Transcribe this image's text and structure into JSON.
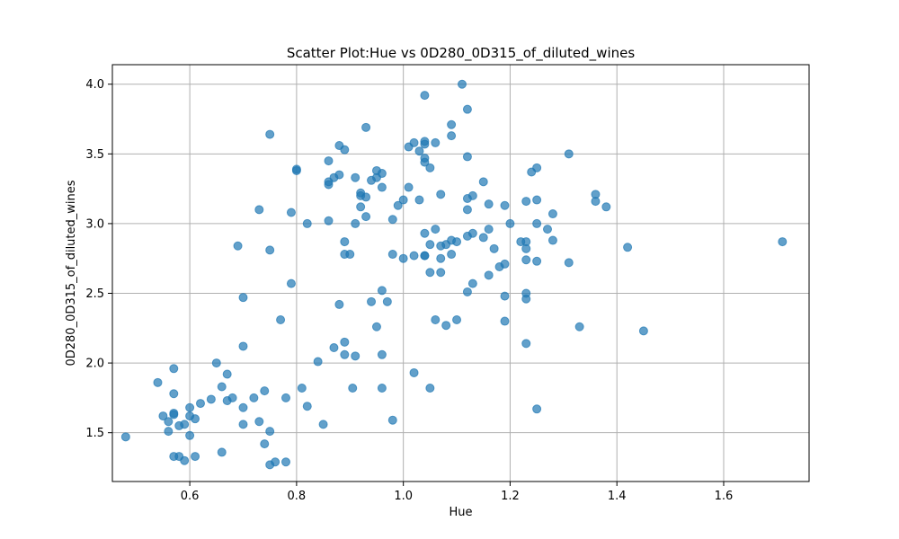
{
  "chart_data": {
    "type": "scatter",
    "title": "Scatter Plot:Hue vs 0D280_0D315_of_diluted_wines",
    "xlabel": "Hue",
    "ylabel": "0D280_0D315_of_diluted_wines",
    "xlim": [
      0.455,
      1.76
    ],
    "ylim": [
      1.15,
      4.14
    ],
    "xticks": [
      0.6,
      0.8,
      1.0,
      1.2,
      1.4,
      1.6
    ],
    "xtick_labels": [
      "0.6",
      "0.8",
      "1.0",
      "1.2",
      "1.4",
      "1.6"
    ],
    "yticks": [
      1.5,
      2.0,
      2.5,
      3.0,
      3.5,
      4.0
    ],
    "ytick_labels": [
      "1.5",
      "2.0",
      "2.5",
      "3.0",
      "3.5",
      "4.0"
    ],
    "grid": true,
    "marker_color": "#1f77b4",
    "marker_alpha": 0.7,
    "points": [
      [
        0.48,
        1.47
      ],
      [
        0.54,
        1.86
      ],
      [
        0.55,
        1.62
      ],
      [
        0.56,
        1.58
      ],
      [
        0.56,
        1.51
      ],
      [
        0.57,
        1.96
      ],
      [
        0.57,
        1.78
      ],
      [
        0.57,
        1.64
      ],
      [
        0.57,
        1.63
      ],
      [
        0.57,
        1.33
      ],
      [
        0.58,
        1.55
      ],
      [
        0.58,
        1.33
      ],
      [
        0.59,
        1.56
      ],
      [
        0.59,
        1.3
      ],
      [
        0.6,
        1.68
      ],
      [
        0.6,
        1.62
      ],
      [
        0.6,
        1.48
      ],
      [
        0.61,
        1.6
      ],
      [
        0.61,
        1.33
      ],
      [
        0.62,
        1.71
      ],
      [
        0.64,
        1.74
      ],
      [
        0.65,
        2.0
      ],
      [
        0.66,
        1.83
      ],
      [
        0.66,
        1.36
      ],
      [
        0.67,
        1.92
      ],
      [
        0.67,
        1.73
      ],
      [
        0.68,
        1.75
      ],
      [
        0.69,
        2.84
      ],
      [
        0.7,
        2.47
      ],
      [
        0.7,
        2.12
      ],
      [
        0.7,
        1.68
      ],
      [
        0.7,
        1.56
      ],
      [
        0.72,
        1.75
      ],
      [
        0.73,
        3.1
      ],
      [
        0.73,
        1.58
      ],
      [
        0.74,
        1.8
      ],
      [
        0.74,
        1.42
      ],
      [
        0.75,
        3.64
      ],
      [
        0.75,
        2.81
      ],
      [
        0.75,
        1.51
      ],
      [
        0.75,
        1.27
      ],
      [
        0.76,
        1.29
      ],
      [
        0.77,
        2.31
      ],
      [
        0.78,
        1.75
      ],
      [
        0.78,
        1.29
      ],
      [
        0.79,
        3.08
      ],
      [
        0.79,
        2.57
      ],
      [
        0.8,
        3.39
      ],
      [
        0.8,
        3.38
      ],
      [
        0.81,
        1.82
      ],
      [
        0.82,
        3.0
      ],
      [
        0.82,
        1.69
      ],
      [
        0.84,
        2.01
      ],
      [
        0.85,
        1.56
      ],
      [
        0.86,
        3.45
      ],
      [
        0.86,
        3.3
      ],
      [
        0.86,
        3.28
      ],
      [
        0.86,
        3.02
      ],
      [
        0.87,
        3.33
      ],
      [
        0.87,
        2.11
      ],
      [
        0.88,
        3.56
      ],
      [
        0.88,
        3.35
      ],
      [
        0.88,
        2.42
      ],
      [
        0.89,
        3.53
      ],
      [
        0.89,
        2.87
      ],
      [
        0.89,
        2.78
      ],
      [
        0.89,
        2.15
      ],
      [
        0.89,
        2.06
      ],
      [
        0.9,
        2.78
      ],
      [
        0.905,
        1.82
      ],
      [
        0.91,
        3.33
      ],
      [
        0.91,
        3.0
      ],
      [
        0.91,
        2.05
      ],
      [
        0.92,
        3.22
      ],
      [
        0.92,
        3.2
      ],
      [
        0.92,
        3.12
      ],
      [
        0.93,
        3.69
      ],
      [
        0.93,
        3.19
      ],
      [
        0.93,
        3.05
      ],
      [
        0.94,
        3.31
      ],
      [
        0.94,
        2.44
      ],
      [
        0.95,
        3.38
      ],
      [
        0.95,
        3.33
      ],
      [
        0.95,
        2.26
      ],
      [
        0.96,
        3.36
      ],
      [
        0.96,
        3.26
      ],
      [
        0.96,
        2.52
      ],
      [
        0.96,
        2.06
      ],
      [
        0.96,
        1.82
      ],
      [
        0.97,
        2.44
      ],
      [
        0.98,
        3.03
      ],
      [
        0.98,
        2.78
      ],
      [
        0.98,
        1.59
      ],
      [
        0.99,
        3.13
      ],
      [
        1.0,
        3.17
      ],
      [
        1.0,
        2.75
      ],
      [
        1.01,
        3.55
      ],
      [
        1.01,
        3.26
      ],
      [
        1.02,
        3.58
      ],
      [
        1.02,
        2.77
      ],
      [
        1.02,
        1.93
      ],
      [
        1.03,
        3.52
      ],
      [
        1.03,
        3.17
      ],
      [
        1.04,
        3.92
      ],
      [
        1.04,
        3.59
      ],
      [
        1.04,
        3.57
      ],
      [
        1.04,
        3.47
      ],
      [
        1.04,
        3.44
      ],
      [
        1.04,
        2.93
      ],
      [
        1.04,
        2.77
      ],
      [
        1.04,
        2.77
      ],
      [
        1.05,
        3.4
      ],
      [
        1.05,
        2.85
      ],
      [
        1.05,
        2.65
      ],
      [
        1.05,
        1.82
      ],
      [
        1.06,
        3.58
      ],
      [
        1.06,
        2.96
      ],
      [
        1.06,
        2.31
      ],
      [
        1.07,
        3.21
      ],
      [
        1.07,
        2.84
      ],
      [
        1.07,
        2.75
      ],
      [
        1.07,
        2.65
      ],
      [
        1.08,
        2.85
      ],
      [
        1.08,
        2.27
      ],
      [
        1.09,
        3.71
      ],
      [
        1.09,
        3.63
      ],
      [
        1.09,
        2.88
      ],
      [
        1.09,
        2.78
      ],
      [
        1.1,
        2.87
      ],
      [
        1.1,
        2.31
      ],
      [
        1.11,
        4.0
      ],
      [
        1.12,
        3.82
      ],
      [
        1.12,
        3.48
      ],
      [
        1.12,
        3.18
      ],
      [
        1.12,
        3.1
      ],
      [
        1.12,
        2.91
      ],
      [
        1.12,
        2.51
      ],
      [
        1.13,
        3.2
      ],
      [
        1.13,
        2.93
      ],
      [
        1.13,
        2.57
      ],
      [
        1.15,
        3.3
      ],
      [
        1.15,
        2.9
      ],
      [
        1.16,
        3.14
      ],
      [
        1.16,
        2.96
      ],
      [
        1.16,
        2.63
      ],
      [
        1.17,
        2.82
      ],
      [
        1.18,
        2.69
      ],
      [
        1.19,
        3.13
      ],
      [
        1.19,
        2.71
      ],
      [
        1.19,
        2.48
      ],
      [
        1.19,
        2.3
      ],
      [
        1.2,
        3.0
      ],
      [
        1.22,
        2.87
      ],
      [
        1.23,
        3.16
      ],
      [
        1.23,
        2.87
      ],
      [
        1.23,
        2.82
      ],
      [
        1.23,
        2.74
      ],
      [
        1.23,
        2.5
      ],
      [
        1.23,
        2.46
      ],
      [
        1.23,
        2.14
      ],
      [
        1.24,
        3.37
      ],
      [
        1.25,
        3.4
      ],
      [
        1.25,
        3.17
      ],
      [
        1.25,
        3.0
      ],
      [
        1.25,
        2.73
      ],
      [
        1.25,
        1.67
      ],
      [
        1.27,
        2.96
      ],
      [
        1.28,
        3.07
      ],
      [
        1.28,
        2.88
      ],
      [
        1.31,
        3.5
      ],
      [
        1.31,
        2.72
      ],
      [
        1.33,
        2.26
      ],
      [
        1.36,
        3.21
      ],
      [
        1.36,
        3.16
      ],
      [
        1.38,
        3.12
      ],
      [
        1.42,
        2.83
      ],
      [
        1.45,
        2.23
      ],
      [
        1.71,
        2.87
      ]
    ]
  }
}
